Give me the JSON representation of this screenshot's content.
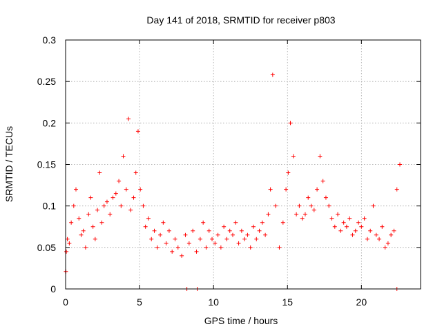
{
  "chart_data": {
    "type": "scatter",
    "title": "Day 141 of 2018, SRMTID for receiver p803",
    "xlabel": "GPS time / hours",
    "ylabel": "SRMTID / TECUs",
    "xlim": [
      0,
      24
    ],
    "ylim": [
      0,
      0.3
    ],
    "x_ticks": [
      0,
      5,
      10,
      15,
      20
    ],
    "x_tick_labels": [
      "0",
      "5",
      "10",
      "15",
      "20"
    ],
    "y_ticks": [
      0,
      0.05,
      0.1,
      0.15,
      0.2,
      0.25,
      0.3
    ],
    "y_tick_labels": [
      "0",
      "0.05",
      "0.1",
      "0.15",
      "0.2",
      "0.25",
      "0.3"
    ],
    "grid": true,
    "marker": "plus",
    "series": [
      {
        "name": "SRMTID",
        "color": "#ff0000",
        "x": [
          0.02,
          0.05,
          0.12,
          0.25,
          0.38,
          0.55,
          0.7,
          0.9,
          1.05,
          1.2,
          1.35,
          1.55,
          1.7,
          1.85,
          2.0,
          2.15,
          2.3,
          2.45,
          2.6,
          2.8,
          3.0,
          3.2,
          3.4,
          3.6,
          3.75,
          3.9,
          4.1,
          4.25,
          4.4,
          4.6,
          4.75,
          4.9,
          5.05,
          5.25,
          5.4,
          5.6,
          5.8,
          6.0,
          6.2,
          6.4,
          6.6,
          6.8,
          7.0,
          7.2,
          7.4,
          7.6,
          7.85,
          8.1,
          8.35,
          8.6,
          8.85,
          9.1,
          9.3,
          9.5,
          9.7,
          9.9,
          10.1,
          10.3,
          10.5,
          10.7,
          10.9,
          11.1,
          11.3,
          11.5,
          11.7,
          11.9,
          12.1,
          12.3,
          12.5,
          12.7,
          12.9,
          13.1,
          13.3,
          13.5,
          13.7,
          13.85,
          14.0,
          14.2,
          14.45,
          14.7,
          14.9,
          15.05,
          15.2,
          15.4,
          15.6,
          15.8,
          16.0,
          16.2,
          16.4,
          16.6,
          16.8,
          17.0,
          17.2,
          17.4,
          17.6,
          17.8,
          18.0,
          18.2,
          18.4,
          18.6,
          18.8,
          19.0,
          19.2,
          19.4,
          19.6,
          19.8,
          20.0,
          20.2,
          20.4,
          20.6,
          20.8,
          21.0,
          21.2,
          21.4,
          21.6,
          21.8,
          22.0,
          22.2,
          22.4,
          22.6,
          8.2,
          8.9,
          22.4
        ],
        "y": [
          0.021,
          0.045,
          0.06,
          0.055,
          0.08,
          0.1,
          0.12,
          0.085,
          0.065,
          0.07,
          0.05,
          0.09,
          0.11,
          0.075,
          0.06,
          0.095,
          0.14,
          0.08,
          0.1,
          0.105,
          0.09,
          0.11,
          0.115,
          0.13,
          0.1,
          0.16,
          0.12,
          0.205,
          0.095,
          0.11,
          0.14,
          0.19,
          0.12,
          0.1,
          0.075,
          0.085,
          0.06,
          0.07,
          0.05,
          0.065,
          0.08,
          0.055,
          0.07,
          0.045,
          0.06,
          0.05,
          0.04,
          0.065,
          0.055,
          0.07,
          0.045,
          0.06,
          0.08,
          0.05,
          0.07,
          0.06,
          0.055,
          0.065,
          0.05,
          0.075,
          0.06,
          0.07,
          0.065,
          0.08,
          0.055,
          0.07,
          0.06,
          0.065,
          0.05,
          0.075,
          0.06,
          0.07,
          0.08,
          0.065,
          0.09,
          0.12,
          0.258,
          0.1,
          0.05,
          0.08,
          0.12,
          0.14,
          0.2,
          0.16,
          0.09,
          0.1,
          0.085,
          0.09,
          0.11,
          0.1,
          0.095,
          0.12,
          0.16,
          0.13,
          0.11,
          0.1,
          0.085,
          0.075,
          0.09,
          0.07,
          0.08,
          0.075,
          0.085,
          0.065,
          0.07,
          0.08,
          0.075,
          0.085,
          0.06,
          0.07,
          0.1,
          0.065,
          0.06,
          0.075,
          0.05,
          0.055,
          0.065,
          0.07,
          0.12,
          0.15,
          0.0,
          0.0,
          0.0
        ]
      }
    ]
  }
}
